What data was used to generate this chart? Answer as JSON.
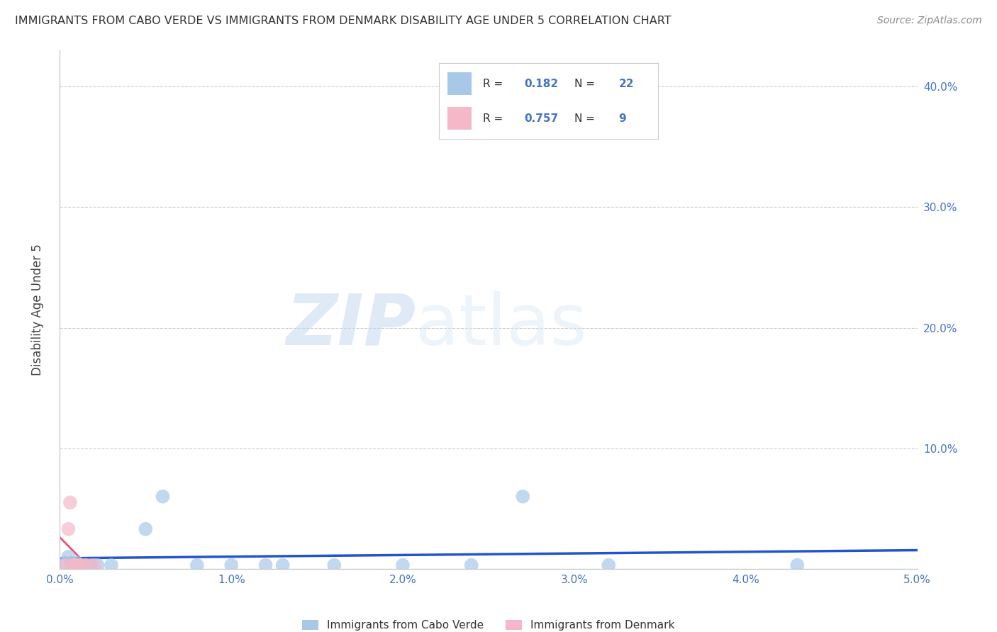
{
  "title": "IMMIGRANTS FROM CABO VERDE VS IMMIGRANTS FROM DENMARK DISABILITY AGE UNDER 5 CORRELATION CHART",
  "source": "Source: ZipAtlas.com",
  "ylabel": "Disability Age Under 5",
  "xlabel_cabo": "Immigrants from Cabo Verde",
  "xlabel_den": "Immigrants from Denmark",
  "watermark_zip": "ZIP",
  "watermark_atlas": "atlas",
  "cabo_R": 0.182,
  "cabo_N": 22,
  "den_R": 0.757,
  "den_N": 9,
  "cabo_color": "#a8c8e8",
  "den_color": "#f4b8c8",
  "cabo_line_color": "#2255cc",
  "den_line_color": "#e8527a",
  "background_color": "#ffffff",
  "grid_color": "#cccccc",
  "title_color": "#333333",
  "right_tick_color": "#4472c4",
  "bottom_tick_color": "#4472c4",
  "legend_border_color": "#cccccc"
}
